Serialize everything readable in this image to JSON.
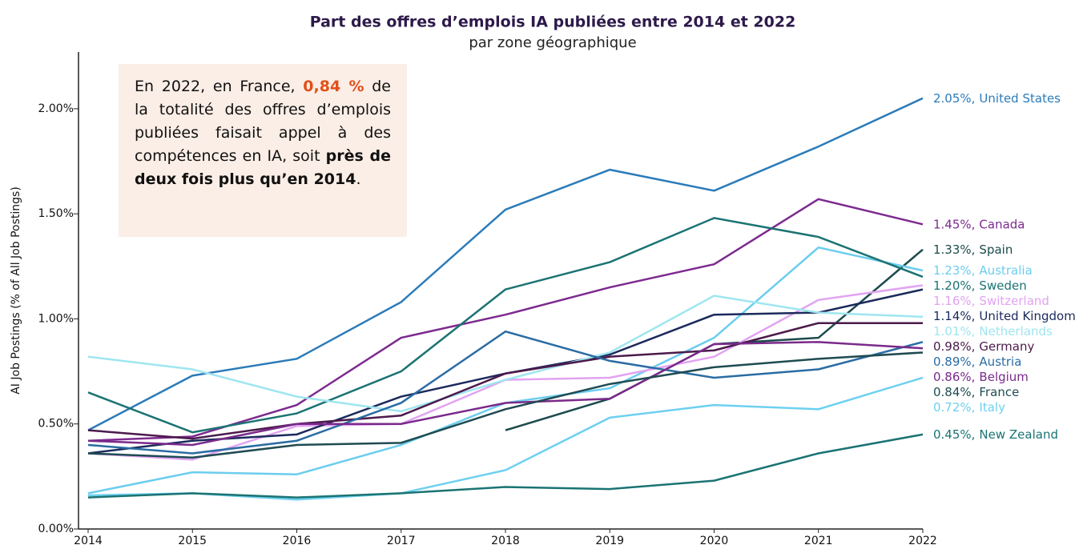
{
  "chart_data": {
    "type": "line",
    "title": "Part des offres d’emplois IA publiées entre 2014 et 2022",
    "subtitle": "par zone géographique",
    "y_label": "AI Job Postings (% of All Job Postings)",
    "annotation": [
      "En 2022, en France, ",
      "0,84 %",
      " de la totalité des offres d’emplois publiées faisait appel à des compétences en IA, soit ",
      "près de deux fois plus qu’en 2014",
      "."
    ],
    "x": [
      2014,
      2015,
      2016,
      2017,
      2018,
      2019,
      2020,
      2021,
      2022
    ],
    "xlim": [
      2014,
      2022
    ],
    "xticks": [
      2014,
      2015,
      2016,
      2017,
      2018,
      2019,
      2020,
      2021,
      2022
    ],
    "ylim": [
      0,
      2.27
    ],
    "yticks": [
      {
        "value": 0,
        "label": "0.00%"
      },
      {
        "value": 0.5,
        "label": "0.50%"
      },
      {
        "value": 1,
        "label": "1.00%"
      },
      {
        "value": 1.5,
        "label": "1.50%"
      },
      {
        "value": 2,
        "label": "2.00%"
      }
    ],
    "series": [
      {
        "name": "United States",
        "color": "#2b7bb9",
        "values": [
          0.47,
          0.73,
          0.81,
          1.08,
          1.52,
          1.71,
          1.61,
          1.82,
          2.05
        ],
        "value_labels": [
          null,
          null,
          null,
          null,
          null,
          null,
          null,
          null,
          "2.05%,"
        ]
      },
      {
        "name": "Canada",
        "color": "#7d2a8f",
        "values": [
          0.42,
          0.44,
          0.59,
          0.91,
          1.02,
          1.15,
          1.26,
          1.57,
          1.45
        ],
        "value_labels": [
          null,
          null,
          null,
          null,
          null,
          null,
          null,
          null,
          "1.45%,"
        ]
      },
      {
        "name": "Spain",
        "color": "#1c4a4c",
        "values": [
          null,
          null,
          null,
          null,
          0.47,
          0.62,
          0.88,
          0.91,
          1.33
        ],
        "value_labels": [
          null,
          null,
          null,
          null,
          null,
          null,
          null,
          null,
          "1.33%,"
        ]
      },
      {
        "name": "Australia",
        "color": "#6ccdee",
        "values": [
          0.17,
          0.27,
          0.26,
          0.4,
          0.6,
          0.67,
          0.91,
          1.34,
          1.23
        ],
        "value_labels": [
          null,
          null,
          null,
          null,
          null,
          null,
          null,
          null,
          "1.23%,"
        ]
      },
      {
        "name": "Sweden",
        "color": "#1b7373",
        "values": [
          0.65,
          0.46,
          0.55,
          0.75,
          1.14,
          1.27,
          1.48,
          1.39,
          1.2
        ],
        "value_labels": [
          null,
          null,
          null,
          null,
          null,
          null,
          null,
          null,
          "1.20%,"
        ]
      },
      {
        "name": "Switzerland",
        "color": "#e2a3f2",
        "values": [
          0.36,
          0.33,
          0.49,
          0.5,
          0.71,
          0.72,
          0.82,
          1.09,
          1.16
        ],
        "value_labels": [
          null,
          null,
          null,
          null,
          null,
          null,
          null,
          null,
          "1.16%,"
        ]
      },
      {
        "name": "United Kingdom",
        "color": "#1b2a5c",
        "values": [
          0.36,
          0.42,
          0.45,
          0.63,
          0.74,
          0.83,
          1.02,
          1.03,
          1.14
        ],
        "value_labels": [
          null,
          null,
          null,
          null,
          null,
          null,
          null,
          null,
          "1.14%,"
        ]
      },
      {
        "name": "Netherlands",
        "color": "#9fe6f0",
        "values": [
          0.82,
          0.76,
          0.63,
          0.56,
          0.71,
          0.84,
          1.11,
          1.03,
          1.01
        ],
        "value_labels": [
          null,
          null,
          null,
          null,
          null,
          null,
          null,
          null,
          "1.01%,"
        ]
      },
      {
        "name": "Germany",
        "color": "#4b1a4b",
        "values": [
          0.47,
          0.43,
          0.5,
          0.54,
          0.74,
          0.82,
          0.85,
          0.98,
          0.98
        ],
        "value_labels": [
          null,
          null,
          null,
          null,
          null,
          null,
          null,
          null,
          "0.98%,"
        ]
      },
      {
        "name": "Austria",
        "color": "#2a6ca3",
        "values": [
          0.4,
          0.36,
          0.42,
          0.6,
          0.94,
          0.8,
          0.72,
          0.76,
          0.89
        ],
        "value_labels": [
          null,
          null,
          null,
          null,
          null,
          null,
          null,
          null,
          "0.89%,"
        ]
      },
      {
        "name": "Belgium",
        "color": "#7a2a8a",
        "values": [
          0.42,
          0.4,
          0.5,
          0.5,
          0.6,
          0.62,
          0.88,
          0.89,
          0.86
        ],
        "value_labels": [
          null,
          null,
          null,
          null,
          null,
          null,
          null,
          null,
          "0.86%,"
        ]
      },
      {
        "name": "France",
        "color": "#1f4b52",
        "values": [
          0.36,
          0.34,
          0.4,
          0.41,
          0.57,
          0.69,
          0.77,
          0.81,
          0.84
        ],
        "value_labels": [
          null,
          null,
          null,
          null,
          null,
          null,
          null,
          null,
          "0.84%,"
        ]
      },
      {
        "name": "Italy",
        "color": "#6dd0f0",
        "values": [
          0.16,
          0.17,
          0.14,
          0.17,
          0.28,
          0.53,
          0.59,
          0.57,
          0.72
        ],
        "value_labels": [
          null,
          null,
          null,
          null,
          null,
          null,
          null,
          null,
          "0.72%,"
        ]
      },
      {
        "name": "New Zealand",
        "color": "#1b7373",
        "values": [
          0.15,
          0.17,
          0.15,
          0.17,
          0.2,
          0.19,
          0.23,
          0.36,
          0.45
        ],
        "value_labels": [
          null,
          null,
          null,
          null,
          null,
          null,
          null,
          null,
          "0.45%,"
        ]
      }
    ]
  }
}
